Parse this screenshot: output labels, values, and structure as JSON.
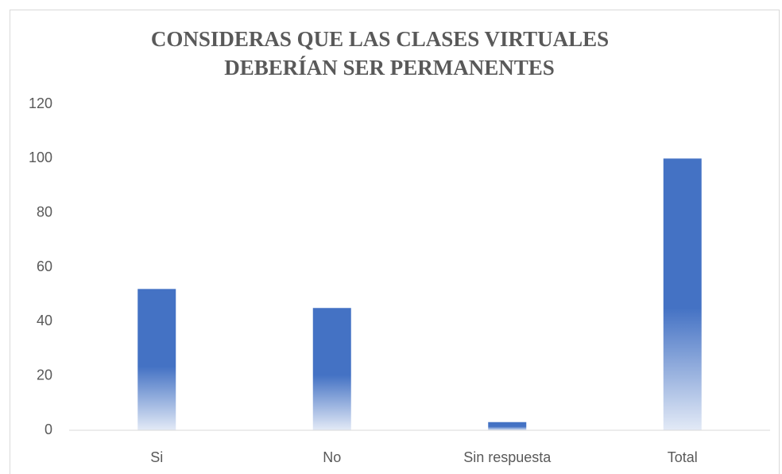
{
  "chart_data": {
    "type": "bar",
    "title": [
      "CONSIDERAS QUE LAS CLASES VIRTUALES",
      "DEBERÍAN SER PERMANENTES"
    ],
    "categories": [
      "Si",
      "No",
      "Sin respuesta",
      "Total"
    ],
    "values": [
      52,
      45,
      3,
      100
    ],
    "color": "#4472c4",
    "ylim": [
      0,
      120
    ],
    "yticks": [
      0,
      20,
      40,
      60,
      80,
      100,
      120
    ],
    "grid": false
  }
}
